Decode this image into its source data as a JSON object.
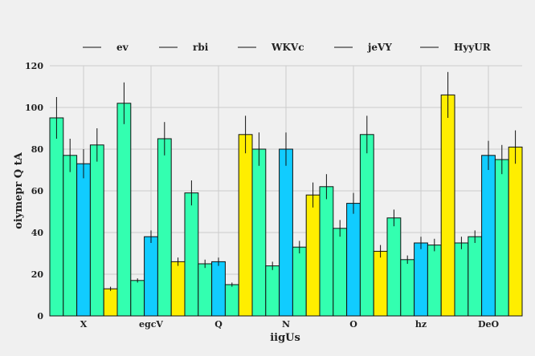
{
  "chart_data": {
    "type": "bar",
    "title": "",
    "xlabel": "iigUs",
    "ylabel": "oiymepr Q  tA",
    "categories": [
      "X",
      "egcV",
      "Q",
      "N",
      "O",
      "hz",
      "DeO"
    ],
    "ylim": [
      0,
      120
    ],
    "yticks": [
      0,
      20,
      40,
      60,
      80,
      100,
      120
    ],
    "grid": true,
    "legend_position": "top",
    "series": [
      {
        "name": "ev",
        "color": "#33ffb0",
        "values": [
          95,
          102,
          59,
          80,
          62,
          47,
          35
        ],
        "errors": [
          10,
          10,
          6,
          8,
          6,
          4,
          3
        ]
      },
      {
        "name": "rbi",
        "color": "#33ffb0",
        "values": [
          77,
          17,
          25,
          24,
          42,
          27,
          38
        ],
        "errors": [
          8,
          1,
          2,
          2,
          4,
          2,
          3
        ]
      },
      {
        "name": "WKVc",
        "color": "#11ccff",
        "values": [
          73,
          38,
          26,
          80,
          54,
          35,
          77
        ],
        "errors": [
          7,
          3,
          2,
          8,
          5,
          3,
          7
        ]
      },
      {
        "name": "jeVY",
        "color": "#33ffb0",
        "values": [
          82,
          85,
          15,
          33,
          87,
          34,
          75
        ],
        "errors": [
          8,
          8,
          1,
          3,
          9,
          3,
          7
        ]
      },
      {
        "name": "HyyUR",
        "color": "#ffee00",
        "values": [
          13,
          26,
          87,
          58,
          31,
          106,
          81
        ],
        "errors": [
          1,
          2,
          9,
          6,
          3,
          11,
          8
        ]
      }
    ]
  }
}
